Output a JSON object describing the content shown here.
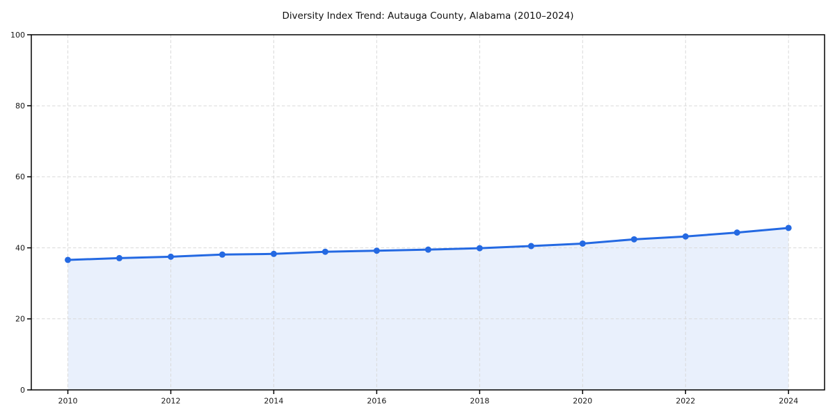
{
  "page": {
    "background": "#ffffff"
  },
  "chart_data": {
    "type": "area",
    "title": "Diversity Index Trend: Autauga County, Alabama (2010–2024)",
    "x": [
      2010,
      2011,
      2012,
      2013,
      2014,
      2015,
      2016,
      2017,
      2018,
      2019,
      2020,
      2021,
      2022,
      2023,
      2024
    ],
    "series": [
      {
        "name": "Diversity Index",
        "values": [
          36.6,
          37.1,
          37.5,
          38.1,
          38.3,
          38.9,
          39.2,
          39.5,
          39.9,
          40.5,
          41.2,
          42.4,
          43.2,
          44.3,
          45.6
        ]
      }
    ],
    "xlabel": "",
    "ylabel": "",
    "xlim": [
      2009.29,
      2024.7
    ],
    "ylim": [
      0,
      100
    ],
    "xticks": [
      2010,
      2012,
      2014,
      2016,
      2018,
      2020,
      2022,
      2024
    ],
    "yticks": [
      0,
      20,
      40,
      60,
      80,
      100
    ],
    "grid": {
      "visible": true,
      "style": "dashed",
      "both_axes": true
    },
    "legend": "none",
    "marker": "circle",
    "colors": {
      "line": "#2469e2",
      "fill": "rgba(36,105,226,0.10)",
      "grid": "#d9d9d9",
      "axis": "#000000",
      "text": "#151515",
      "background": "#ffffff"
    }
  }
}
